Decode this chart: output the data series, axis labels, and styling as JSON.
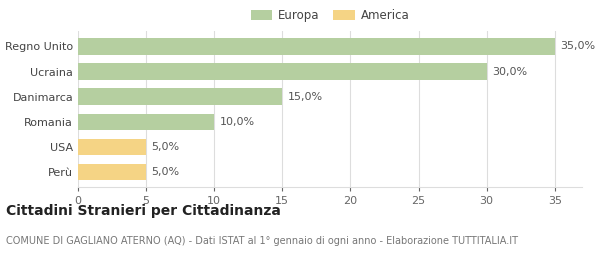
{
  "categories": [
    "Perù",
    "USA",
    "Romania",
    "Danimarca",
    "Ucraina",
    "Regno Unito"
  ],
  "values": [
    5.0,
    5.0,
    10.0,
    15.0,
    30.0,
    35.0
  ],
  "bar_colors": [
    "#f5d485",
    "#f5d485",
    "#b5cfa0",
    "#b5cfa0",
    "#b5cfa0",
    "#b5cfa0"
  ],
  "legend_labels": [
    "Europa",
    "America"
  ],
  "legend_colors": [
    "#b5cfa0",
    "#f5d485"
  ],
  "value_labels": [
    "5,0%",
    "5,0%",
    "10,0%",
    "15,0%",
    "30,0%",
    "35,0%"
  ],
  "xlim": [
    0,
    37
  ],
  "xticks": [
    0,
    5,
    10,
    15,
    20,
    25,
    30,
    35
  ],
  "title": "Cittadini Stranieri per Cittadinanza",
  "subtitle": "COMUNE DI GAGLIANO ATERNO (AQ) - Dati ISTAT al 1° gennaio di ogni anno - Elaborazione TUTTITALIA.IT",
  "title_fontsize": 10,
  "subtitle_fontsize": 7,
  "background_color": "#ffffff",
  "grid_color": "#dddddd",
  "bar_height": 0.65,
  "label_fontsize": 8,
  "tick_fontsize": 8
}
